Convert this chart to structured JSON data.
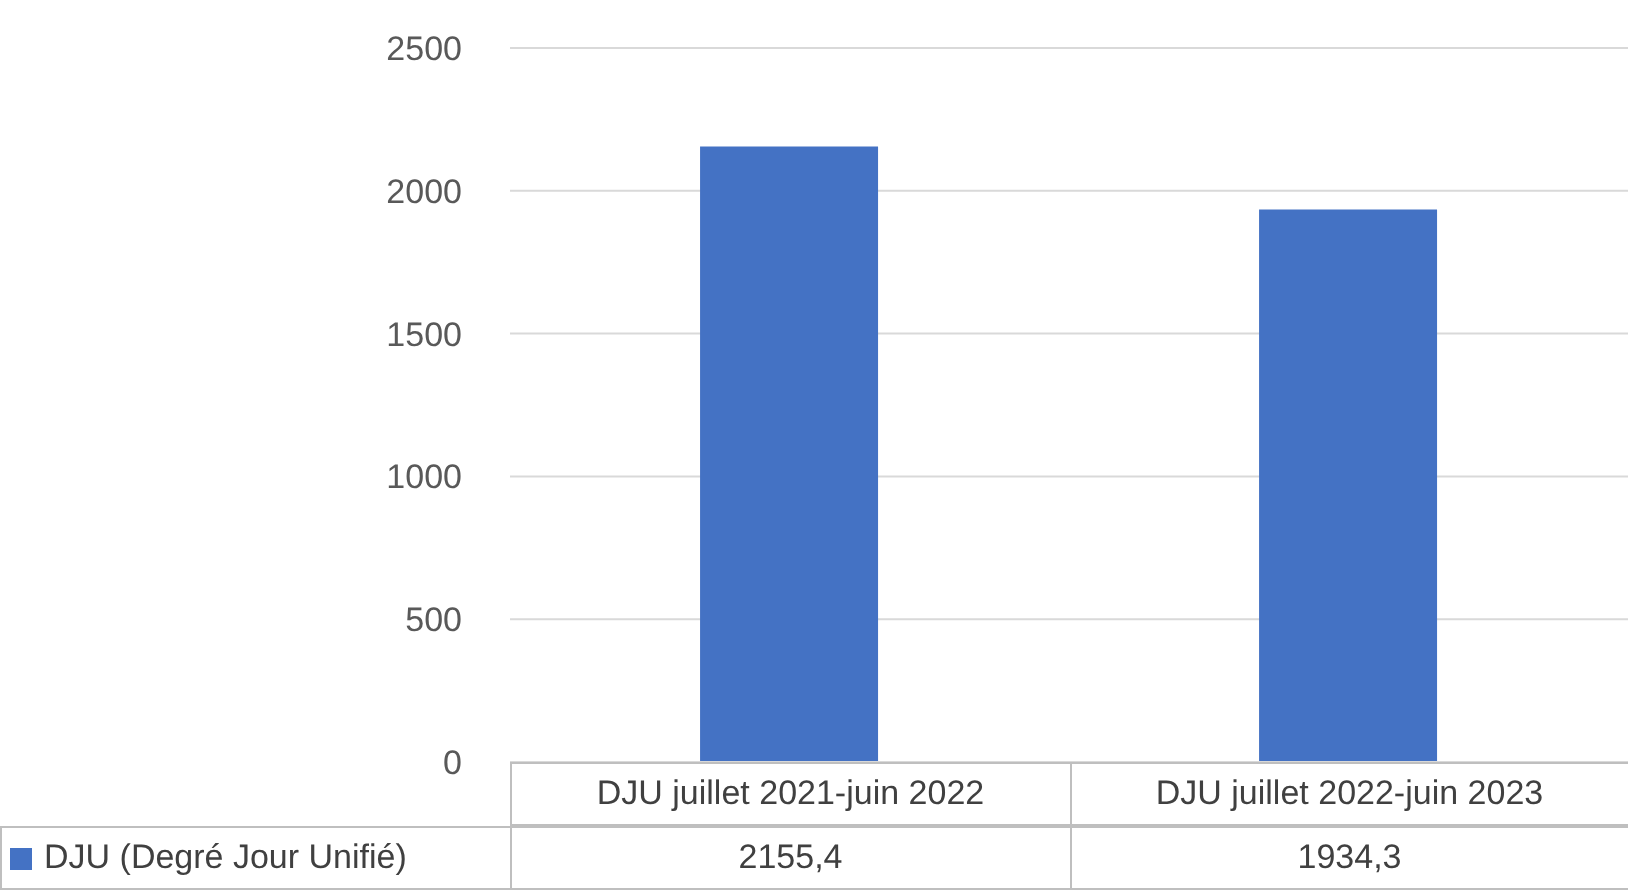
{
  "chart_data": {
    "type": "bar",
    "categories": [
      "DJU juillet 2021-juin 2022",
      "DJU juillet 2022-juin 2023"
    ],
    "series": [
      {
        "name": "DJU (Degré Jour Unifié)",
        "color": "#4472c4",
        "values": [
          2155.4,
          1934.3
        ],
        "value_labels": [
          "2155,4",
          "1934,3"
        ]
      }
    ],
    "ylim": [
      0,
      2500
    ],
    "yticks": [
      0,
      500,
      1000,
      1500,
      2000,
      2500
    ],
    "grid": "y",
    "legend": "bottom"
  }
}
